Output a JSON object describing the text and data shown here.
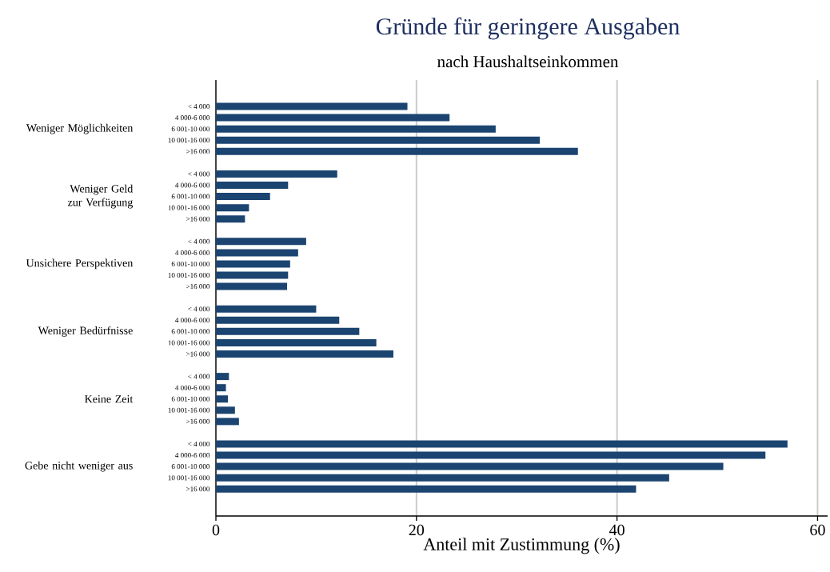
{
  "chart_data": {
    "type": "bar",
    "orientation": "horizontal",
    "title": "Gründe für geringere Ausgaben",
    "subtitle": "nach Haushaltseinkommen",
    "xlabel": "Anteil mit Zustimmung (%)",
    "categories": [
      "< 4 000",
      "4 000-6 000",
      "6 001-10 000",
      "10 001-16 000",
      ">16 000",
      null,
      "< 4 000",
      "4 000-6 000",
      "6 001-10 000",
      "10 001-16 000",
      ">16 000",
      null,
      "< 4 000",
      "4 000-6 000",
      "6 001-10 000",
      "10 001-16 000",
      ">16 000",
      null,
      "< 4 000",
      "4 000-6 000",
      "6 001-10 000",
      "10 001-16 000",
      ">16 000",
      null,
      "< 4 000",
      "4 000-6 000",
      "6 001-10 000",
      "10 001-16 000",
      ">16 000",
      null,
      "< 4 000",
      "4 000-6 000",
      "6 001-10 000",
      "10 001-16 000",
      ">16 000"
    ],
    "values": [
      19.1,
      23.3,
      27.9,
      32.3,
      36.1,
      null,
      12.1,
      7.2,
      5.4,
      3.3,
      2.9,
      null,
      9.0,
      8.2,
      7.4,
      7.2,
      7.1,
      null,
      10.0,
      12.3,
      14.3,
      16.0,
      17.7,
      null,
      1.3,
      1.0,
      1.2,
      1.9,
      2.3,
      null,
      57.0,
      54.8,
      50.6,
      45.2,
      41.9
    ],
    "color": "#1b4470",
    "xlim": [
      0,
      61
    ],
    "xticks": [
      0,
      20,
      40,
      60
    ],
    "grid": "x",
    "annotations": [
      "Weniger Möglichkeiten",
      "Weniger Geld zur Verfügung",
      "Unsichere Perspektiven",
      "Weniger Bedürfnisse",
      "Keine Zeit",
      "Gebe nicht weniger aus"
    ]
  }
}
